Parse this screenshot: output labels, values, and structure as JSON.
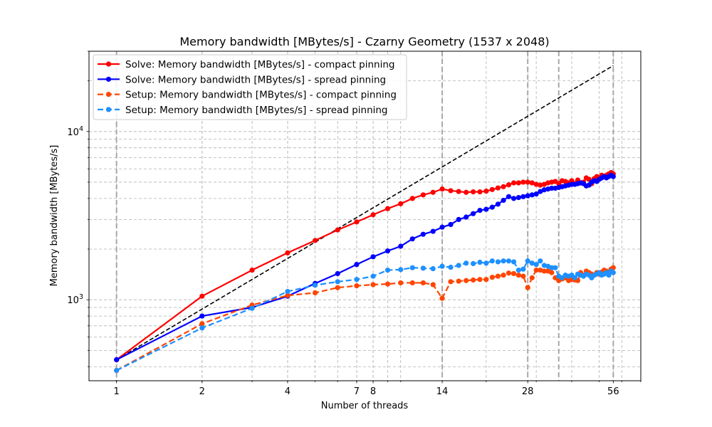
{
  "chart_data": {
    "type": "line",
    "title": "Memory bandwidth [MBytes/s] - Czarny Geometry (1537 x 2048)",
    "xlabel": "Number of threads",
    "ylabel": "Memory bandwidth [MBytes/s]",
    "xscale": "log",
    "yscale": "log",
    "xlim": [
      0.8,
      70
    ],
    "ylim": [
      330,
      30000
    ],
    "grid": true,
    "legend_position": "top-left",
    "x_ticks": [
      1,
      2,
      4,
      7,
      8,
      14,
      28,
      56
    ],
    "x_tick_labels": [
      "1",
      "2",
      "4",
      "7",
      "8",
      "14",
      "28",
      "56"
    ],
    "y_major_ticks": [
      1000,
      10000
    ],
    "y_tick_labels": [
      {
        "base": "10",
        "exp": "3"
      },
      {
        "base": "10",
        "exp": "4"
      }
    ],
    "vertical_markers": [
      1,
      14,
      28,
      36,
      56
    ],
    "ideal_line": {
      "x": [
        1,
        56
      ],
      "y": [
        440,
        24640
      ],
      "color": "#000000"
    },
    "series": [
      {
        "name": "Solve: Memory bandwidth [MBytes/s] - compact pinning",
        "color": "#ff0000",
        "dashed": false,
        "x": [
          1,
          2,
          3,
          4,
          5,
          6,
          7,
          8,
          9,
          10,
          11,
          12,
          13,
          14,
          15,
          16,
          17,
          18,
          19,
          20,
          21,
          22,
          23,
          24,
          25,
          26,
          27,
          28,
          29,
          30,
          31,
          32,
          33,
          34,
          35,
          36,
          37,
          38,
          39,
          40,
          41,
          42,
          43,
          44,
          45,
          46,
          47,
          48,
          49,
          50,
          51,
          52,
          53,
          54,
          55,
          56
        ],
        "y": [
          440,
          1050,
          1500,
          1900,
          2250,
          2600,
          2900,
          3200,
          3480,
          3720,
          4000,
          4200,
          4350,
          4550,
          4450,
          4400,
          4350,
          4380,
          4380,
          4420,
          4520,
          4620,
          4700,
          4820,
          4950,
          4950,
          5000,
          5000,
          4950,
          4850,
          4800,
          4850,
          4950,
          5000,
          5050,
          4900,
          5100,
          5050,
          4950,
          5100,
          4900,
          5150,
          4950,
          5000,
          5300,
          5200,
          4900,
          5250,
          5400,
          5300,
          5500,
          5400,
          5500,
          5600,
          5700,
          5600
        ]
      },
      {
        "name": "Solve: Memory bandwidth [MBytes/s] - spread pinning",
        "color": "#0000ff",
        "dashed": false,
        "x": [
          1,
          2,
          3,
          4,
          5,
          6,
          7,
          8,
          9,
          10,
          11,
          12,
          13,
          14,
          15,
          16,
          17,
          18,
          19,
          20,
          21,
          22,
          23,
          24,
          25,
          26,
          27,
          28,
          29,
          30,
          31,
          32,
          33,
          34,
          35,
          36,
          37,
          38,
          39,
          40,
          41,
          42,
          43,
          44,
          45,
          46,
          47,
          48,
          49,
          50,
          51,
          52,
          53,
          54,
          55,
          56
        ],
        "y": [
          440,
          800,
          900,
          1050,
          1250,
          1430,
          1620,
          1800,
          1950,
          2080,
          2300,
          2450,
          2550,
          2700,
          2800,
          3000,
          3100,
          3250,
          3400,
          3450,
          3550,
          3700,
          3900,
          4100,
          4000,
          4050,
          4100,
          4150,
          4200,
          4250,
          4400,
          4500,
          4550,
          4600,
          4600,
          4650,
          4700,
          4750,
          4800,
          4850,
          4850,
          4900,
          4950,
          4900,
          4750,
          4800,
          5000,
          5100,
          5050,
          5200,
          5300,
          5400,
          5300,
          5400,
          5500,
          5400
        ]
      },
      {
        "name": "Setup: Memory bandwidth [MBytes/s] - compact pinning",
        "color": "#ff4500",
        "dashed": true,
        "x": [
          1,
          2,
          3,
          4,
          5,
          6,
          7,
          8,
          9,
          10,
          11,
          12,
          13,
          14,
          15,
          16,
          17,
          18,
          19,
          20,
          21,
          22,
          23,
          24,
          25,
          26,
          27,
          28,
          29,
          30,
          31,
          32,
          33,
          34,
          35,
          36,
          37,
          38,
          39,
          40,
          41,
          42,
          43,
          44,
          45,
          46,
          47,
          48,
          49,
          50,
          51,
          52,
          53,
          54,
          55,
          56
        ],
        "y": [
          380,
          720,
          930,
          1060,
          1100,
          1180,
          1210,
          1230,
          1240,
          1260,
          1260,
          1260,
          1230,
          1020,
          1280,
          1290,
          1300,
          1310,
          1320,
          1320,
          1360,
          1380,
          1400,
          1440,
          1430,
          1400,
          1380,
          1180,
          1350,
          1500,
          1500,
          1480,
          1480,
          1450,
          1350,
          1300,
          1330,
          1350,
          1300,
          1320,
          1310,
          1300,
          1450,
          1400,
          1480,
          1450,
          1420,
          1400,
          1450,
          1420,
          1460,
          1500,
          1480,
          1450,
          1520,
          1550
        ]
      },
      {
        "name": "Setup: Memory bandwidth [MBytes/s] - spread pinning",
        "color": "#1e90ff",
        "dashed": true,
        "x": [
          1,
          2,
          3,
          4,
          5,
          6,
          7,
          8,
          9,
          10,
          11,
          12,
          13,
          14,
          15,
          16,
          17,
          18,
          19,
          20,
          21,
          22,
          23,
          24,
          25,
          26,
          27,
          28,
          29,
          30,
          31,
          32,
          33,
          34,
          35,
          36,
          37,
          38,
          39,
          40,
          41,
          42,
          43,
          44,
          45,
          46,
          47,
          48,
          49,
          50,
          51,
          52,
          53,
          54,
          55,
          56
        ],
        "y": [
          380,
          680,
          890,
          1120,
          1220,
          1280,
          1320,
          1380,
          1500,
          1510,
          1550,
          1540,
          1530,
          1580,
          1560,
          1600,
          1650,
          1640,
          1670,
          1650,
          1700,
          1680,
          1700,
          1700,
          1680,
          1500,
          1520,
          1700,
          1650,
          1620,
          1700,
          1600,
          1580,
          1550,
          1550,
          1380,
          1350,
          1400,
          1380,
          1400,
          1350,
          1420,
          1400,
          1380,
          1420,
          1400,
          1350,
          1400,
          1420,
          1450,
          1400,
          1420,
          1450,
          1400,
          1480,
          1450
        ]
      }
    ]
  }
}
